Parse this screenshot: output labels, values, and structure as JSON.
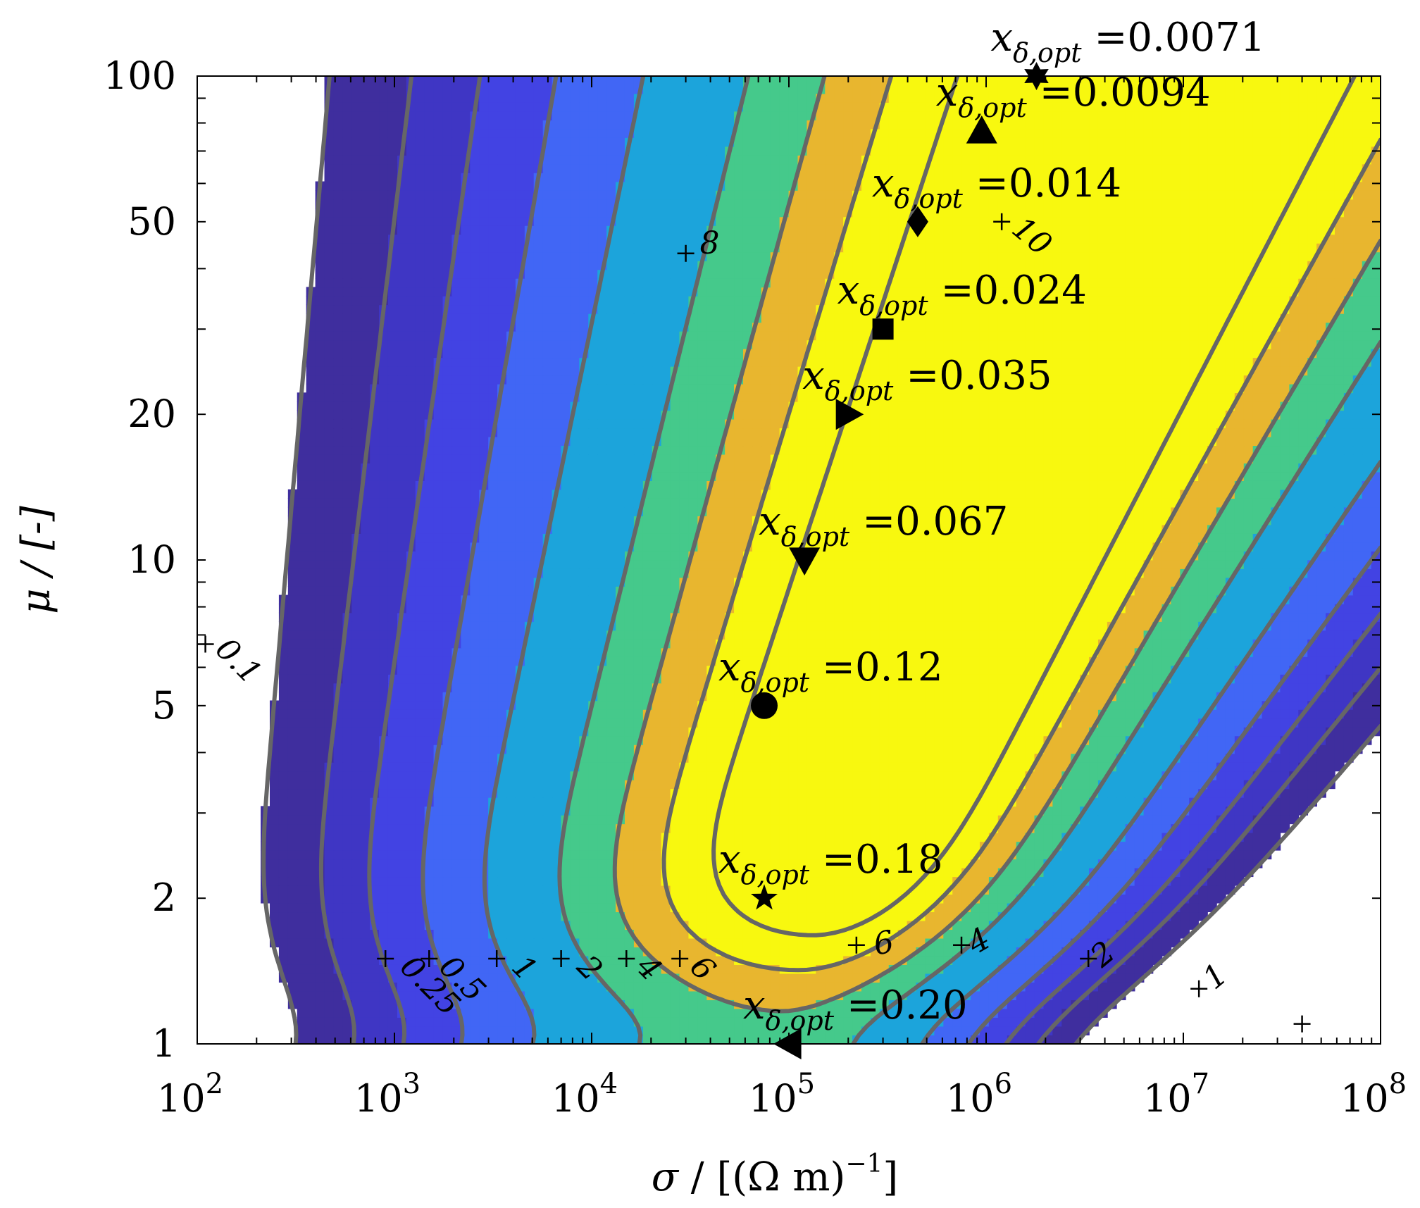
{
  "chart_data": {
    "type": "contour",
    "xscale": "log",
    "yscale": "log",
    "xlim": [
      100,
      100000000
    ],
    "ylim": [
      1,
      100
    ],
    "xlabel": {
      "symbol": "σ",
      "unit": " / [(Ω m)",
      "exp": "−1",
      "close": "]"
    },
    "ylabel": "μ  / [-]",
    "x_ticks": [
      {
        "value": 100,
        "base": "10",
        "exp": "2"
      },
      {
        "value": 1000,
        "base": "10",
        "exp": "3"
      },
      {
        "value": 10000,
        "base": "10",
        "exp": "4"
      },
      {
        "value": 100000,
        "base": "10",
        "exp": "5"
      },
      {
        "value": 1000000,
        "base": "10",
        "exp": "6"
      },
      {
        "value": 10000000,
        "base": "10",
        "exp": "7"
      },
      {
        "value": 100000000,
        "base": "10",
        "exp": "8"
      }
    ],
    "y_ticks": [
      {
        "value": 1,
        "label": "1"
      },
      {
        "value": 2,
        "label": "2"
      },
      {
        "value": 5,
        "label": "5"
      },
      {
        "value": 10,
        "label": "10"
      },
      {
        "value": 20,
        "label": "20"
      },
      {
        "value": 50,
        "label": "50"
      },
      {
        "value": 100,
        "label": "100"
      }
    ],
    "contour_levels": [
      0.1,
      0.25,
      0.5,
      1,
      2,
      4,
      6,
      8,
      10
    ],
    "level_colors": [
      "#3f2e9e",
      "#3f36c4",
      "#4243e3",
      "#4166f5",
      "#1ca4db",
      "#45c98b",
      "#e8b62f",
      "#f8f80f"
    ],
    "line_color": "#666666",
    "contour_labels": [
      {
        "text": "0.1",
        "x": 110,
        "y": 6.8,
        "rotation": 45
      },
      {
        "text": "0.25",
        "x": 950,
        "y": 1.5,
        "rotation": 45
      },
      {
        "text": "0.5",
        "x": 1500,
        "y": 1.5,
        "rotation": 45
      },
      {
        "text": "1",
        "x": 3500,
        "y": 1.5,
        "rotation": 45
      },
      {
        "text": "2",
        "x": 7500,
        "y": 1.5,
        "rotation": 45
      },
      {
        "text": "4",
        "x": 15000,
        "y": 1.5,
        "rotation": 45
      },
      {
        "text": "6",
        "x": 28000,
        "y": 1.5,
        "rotation": 45
      },
      {
        "text": "8",
        "x": 32000,
        "y": 45,
        "rotation": 0
      },
      {
        "text": "10",
        "x": 1200000,
        "y": 50,
        "rotation": 40
      },
      {
        "text": "6",
        "x": 250000,
        "y": 1.6,
        "rotation": -10
      },
      {
        "text": "4",
        "x": 800000,
        "y": 1.6,
        "rotation": -30
      },
      {
        "text": "2",
        "x": 3500000,
        "y": 1.5,
        "rotation": -40
      },
      {
        "text": "1",
        "x": 13000000,
        "y": 1.35,
        "rotation": -40
      }
    ],
    "label_plus_marks": [
      {
        "x": 110,
        "y": 6.7
      },
      {
        "x": 900,
        "y": 1.5
      },
      {
        "x": 1500,
        "y": 1.5
      },
      {
        "x": 3300,
        "y": 1.5
      },
      {
        "x": 7000,
        "y": 1.5
      },
      {
        "x": 15000,
        "y": 1.5
      },
      {
        "x": 28000,
        "y": 1.5
      },
      {
        "x": 30000,
        "y": 43
      },
      {
        "x": 1200000,
        "y": 50
      },
      {
        "x": 220000,
        "y": 1.6
      },
      {
        "x": 750000,
        "y": 1.6
      },
      {
        "x": 3300000,
        "y": 1.5
      },
      {
        "x": 12000000,
        "y": 1.3
      },
      {
        "x": 40000000,
        "y": 1.1
      }
    ],
    "optimum_points": [
      {
        "x": 1800000,
        "y": 100,
        "marker": "hexagram",
        "value": "=0.0071"
      },
      {
        "x": 950000,
        "y": 77,
        "marker": "triangle-up",
        "value": "=0.0094"
      },
      {
        "x": 450000,
        "y": 50,
        "marker": "diamond",
        "value": "=0.014"
      },
      {
        "x": 300000,
        "y": 30,
        "marker": "square",
        "value": "=0.024"
      },
      {
        "x": 200000,
        "y": 20,
        "marker": "triangle-right",
        "value": "=0.035"
      },
      {
        "x": 120000,
        "y": 10,
        "marker": "triangle-down",
        "value": "=0.067"
      },
      {
        "x": 75000,
        "y": 5,
        "marker": "circle",
        "value": "=0.12"
      },
      {
        "x": 75000,
        "y": 2,
        "marker": "star",
        "value": "=0.18"
      },
      {
        "x": 100000,
        "y": 1,
        "marker": "triangle-left",
        "value": "=0.20"
      }
    ],
    "opt_symbol": "x",
    "opt_subscript": "δ,opt"
  }
}
